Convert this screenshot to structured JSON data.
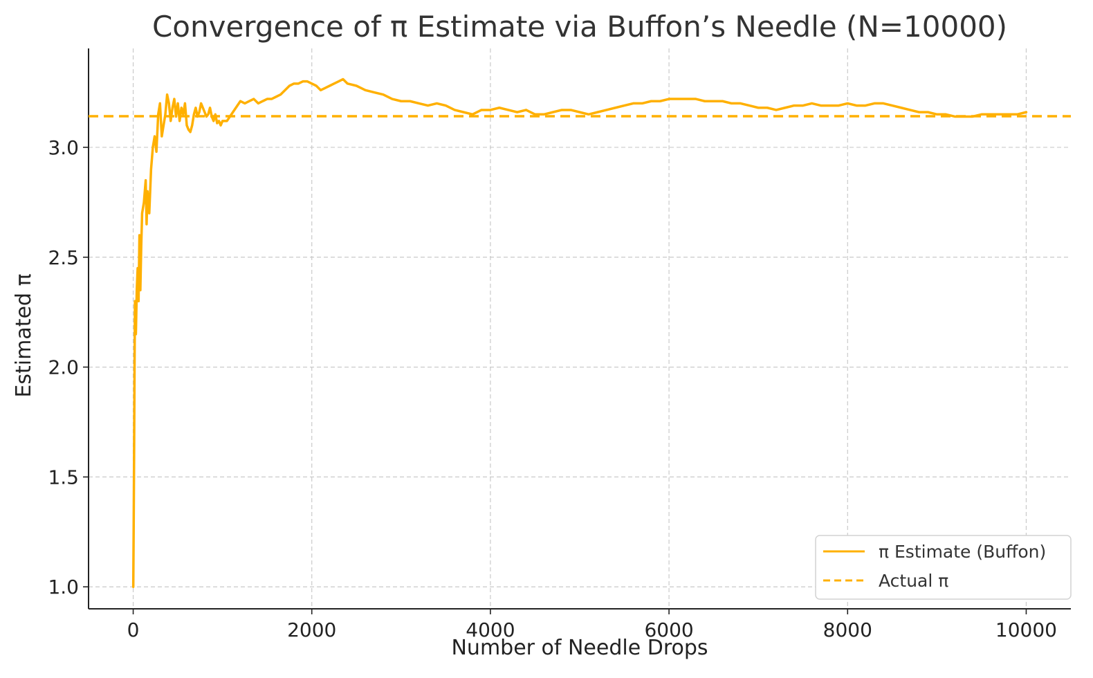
{
  "chart_data": {
    "type": "line",
    "title": "Convergence of π Estimate via Buffon’s Needle (N=10000)",
    "xlabel": "Number of Needle Drops",
    "ylabel": "Estimated π",
    "xlim": [
      -500,
      10500
    ],
    "ylim": [
      0.9,
      3.45
    ],
    "xticks": [
      "0",
      "2000",
      "4000",
      "6000",
      "8000",
      "10000"
    ],
    "yticks": [
      "1.0",
      "1.5",
      "2.0",
      "2.5",
      "3.0"
    ],
    "grid": true,
    "legend": {
      "placement": "bottom-right",
      "entries": [
        "π Estimate (Buffon)",
        "Actual π"
      ]
    },
    "series": [
      {
        "name": "π Estimate (Buffon)",
        "color": "#FFB000",
        "style": "solid",
        "x": [
          1,
          5,
          10,
          15,
          20,
          30,
          40,
          50,
          60,
          70,
          80,
          90,
          100,
          120,
          140,
          150,
          160,
          180,
          200,
          220,
          240,
          260,
          280,
          300,
          320,
          340,
          360,
          380,
          400,
          420,
          440,
          460,
          480,
          500,
          520,
          540,
          560,
          580,
          600,
          620,
          640,
          660,
          680,
          700,
          720,
          740,
          760,
          780,
          800,
          820,
          840,
          860,
          880,
          900,
          920,
          940,
          960,
          980,
          1000,
          1050,
          1100,
          1150,
          1200,
          1250,
          1300,
          1350,
          1400,
          1450,
          1500,
          1550,
          1600,
          1650,
          1700,
          1750,
          1800,
          1850,
          1900,
          1950,
          2000,
          2050,
          2100,
          2150,
          2200,
          2250,
          2300,
          2350,
          2400,
          2500,
          2600,
          2700,
          2800,
          2900,
          3000,
          3100,
          3200,
          3300,
          3400,
          3500,
          3600,
          3700,
          3800,
          3900,
          4000,
          4100,
          4200,
          4300,
          4400,
          4500,
          4600,
          4700,
          4800,
          4900,
          5000,
          5100,
          5200,
          5300,
          5400,
          5500,
          5600,
          5700,
          5800,
          5900,
          6000,
          6100,
          6200,
          6300,
          6400,
          6500,
          6600,
          6700,
          6800,
          6900,
          7000,
          7100,
          7200,
          7300,
          7400,
          7500,
          7600,
          7700,
          7800,
          7900,
          8000,
          8100,
          8200,
          8300,
          8400,
          8500,
          8600,
          8700,
          8800,
          8900,
          9000,
          9100,
          9200,
          9300,
          9400,
          9500,
          9600,
          9700,
          9800,
          9900,
          10000
        ],
        "y": [
          1.0,
          1.25,
          1.6,
          2.0,
          2.3,
          2.15,
          2.35,
          2.45,
          2.3,
          2.6,
          2.35,
          2.55,
          2.7,
          2.75,
          2.85,
          2.65,
          2.8,
          2.7,
          2.9,
          3.0,
          3.05,
          2.98,
          3.15,
          3.2,
          3.05,
          3.1,
          3.15,
          3.24,
          3.2,
          3.12,
          3.18,
          3.22,
          3.14,
          3.2,
          3.12,
          3.18,
          3.15,
          3.2,
          3.1,
          3.08,
          3.07,
          3.1,
          3.15,
          3.18,
          3.14,
          3.16,
          3.2,
          3.18,
          3.16,
          3.14,
          3.15,
          3.18,
          3.14,
          3.12,
          3.15,
          3.11,
          3.12,
          3.1,
          3.12,
          3.12,
          3.15,
          3.18,
          3.21,
          3.2,
          3.21,
          3.22,
          3.2,
          3.21,
          3.22,
          3.22,
          3.23,
          3.24,
          3.26,
          3.28,
          3.29,
          3.29,
          3.3,
          3.3,
          3.29,
          3.28,
          3.26,
          3.27,
          3.28,
          3.29,
          3.3,
          3.31,
          3.29,
          3.28,
          3.26,
          3.25,
          3.24,
          3.22,
          3.21,
          3.21,
          3.2,
          3.19,
          3.2,
          3.19,
          3.17,
          3.16,
          3.15,
          3.17,
          3.17,
          3.18,
          3.17,
          3.16,
          3.17,
          3.15,
          3.15,
          3.16,
          3.17,
          3.17,
          3.16,
          3.15,
          3.16,
          3.17,
          3.18,
          3.19,
          3.2,
          3.2,
          3.21,
          3.21,
          3.22,
          3.22,
          3.22,
          3.22,
          3.21,
          3.21,
          3.21,
          3.2,
          3.2,
          3.19,
          3.18,
          3.18,
          3.17,
          3.18,
          3.19,
          3.19,
          3.2,
          3.19,
          3.19,
          3.19,
          3.2,
          3.19,
          3.19,
          3.2,
          3.2,
          3.19,
          3.18,
          3.17,
          3.16,
          3.16,
          3.15,
          3.15,
          3.14,
          3.14,
          3.14,
          3.15,
          3.15,
          3.15,
          3.15,
          3.15,
          3.16
        ]
      },
      {
        "name": "Actual π",
        "color": "#FFB000",
        "style": "dashed",
        "y": 3.14159
      }
    ]
  }
}
